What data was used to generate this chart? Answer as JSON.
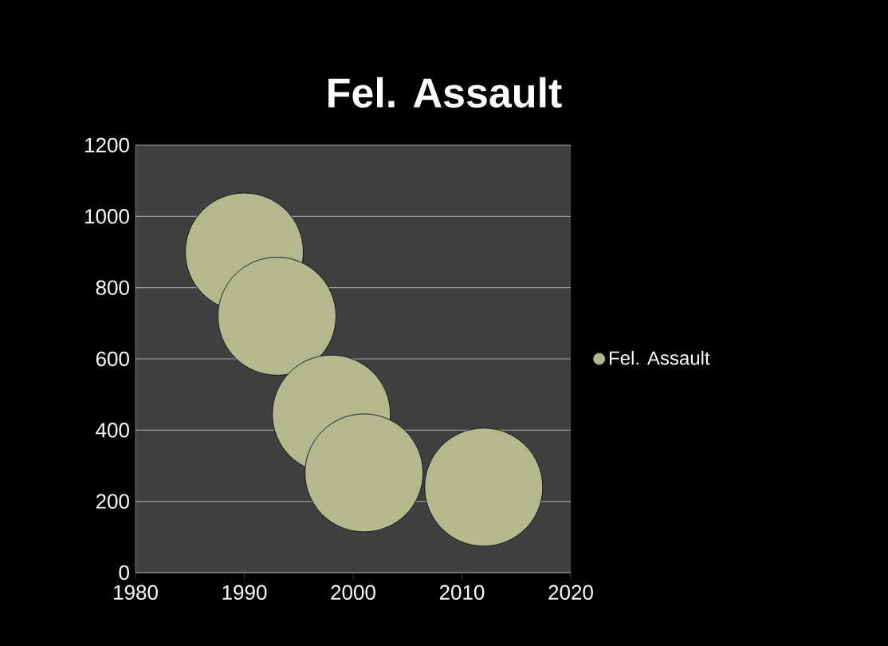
{
  "chart_data": {
    "type": "bubble",
    "title": "Fel. Assault",
    "x": [
      1990,
      1993,
      1998,
      2001,
      2012
    ],
    "series": [
      {
        "name": "Fel. Assault",
        "color": "#b3b88f",
        "values": [
          900,
          720,
          445,
          280,
          240
        ],
        "sizes": [
          1,
          1,
          1,
          1,
          1
        ]
      }
    ],
    "xlim": [
      1980,
      2020
    ],
    "xticks": [
      1980,
      1990,
      2000,
      2010,
      2020
    ],
    "ylim": [
      0,
      1200
    ],
    "yticks": [
      0,
      200,
      400,
      600,
      800,
      1000,
      1200
    ],
    "grid": "y",
    "legend": "right"
  }
}
